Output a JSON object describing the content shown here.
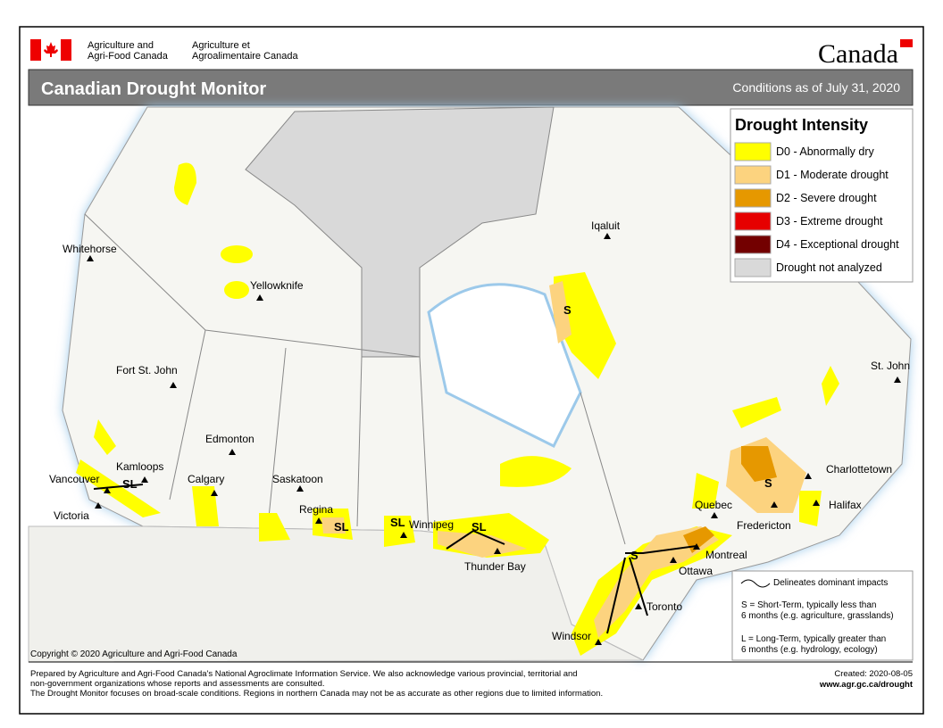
{
  "header": {
    "agency_en": [
      "Agriculture and",
      "Agri-Food Canada"
    ],
    "agency_fr": [
      "Agriculture et",
      "Agroalimentaire Canada"
    ],
    "wordmark": "Canada"
  },
  "title": "Canadian Drought Monitor",
  "date": "Conditions as of July 31, 2020",
  "legend": {
    "title": "Drought Intensity",
    "items": [
      {
        "label": "D0 - Abnormally dry",
        "color": "#ffff00"
      },
      {
        "label": "D1 - Moderate drought",
        "color": "#fcd37f"
      },
      {
        "label": "D2 - Severe drought",
        "color": "#e69800"
      },
      {
        "label": "D3 - Extreme drought",
        "color": "#e60000"
      },
      {
        "label": "D4 - Exceptional drought",
        "color": "#730000"
      },
      {
        "label": "Drought not analyzed",
        "color": "#d9d9d9"
      }
    ]
  },
  "impacts_legend": {
    "line": "Delineates dominant impacts",
    "short": [
      "S = Short-Term, typically less than",
      "6 months (e.g. agriculture, grasslands)"
    ],
    "long": [
      "L = Long-Term, typically greater  than",
      "6 months (e.g. hydrology, ecology)"
    ]
  },
  "cities": [
    "Whitehorse",
    "Yellowknife",
    "Iqaluit",
    "Fort St. John",
    "St. John",
    "Edmonton",
    "Kamloops",
    "Vancouver",
    "Victoria",
    "Calgary",
    "Saskatoon",
    "Regina",
    "Winnipeg",
    "Thunder Bay",
    "Charlottetown",
    "Quebec",
    "Halifax",
    "Fredericton",
    "Montreal",
    "Ottawa",
    "Toronto",
    "Windsor"
  ],
  "impact_labels": [
    "S",
    "SL",
    "SL",
    "SL",
    "SL",
    "S",
    "S"
  ],
  "copyright": "Copyright © 2020 Agriculture and Agri-Food Canada",
  "footer": [
    "Prepared by Agriculture and Agri-Food Canada's National Agroclimate Information Service.  We also acknowledge various provincial, territorial and",
    "non-government organizations whose reports and assessments are consulted.",
    "The Drought Monitor focuses on broad-scale conditions.  Regions in northern Canada may not be as accurate as other regions due to limited information."
  ],
  "created": "Created: 2020-08-05",
  "url": "www.agr.gc.ca/drought"
}
